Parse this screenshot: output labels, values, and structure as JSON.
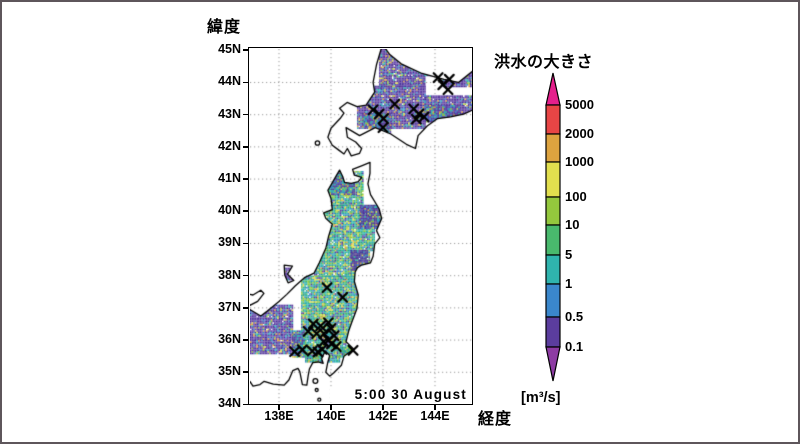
{
  "figure": {
    "border_color": "#5e565b",
    "background": "#ffffff"
  },
  "map": {
    "ylabel": "緯度",
    "xlabel": "経度",
    "timestamp": "5:00 30 August",
    "lat_ticks": [
      {
        "label": "45N",
        "lat": 45
      },
      {
        "label": "44N",
        "lat": 44
      },
      {
        "label": "43N",
        "lat": 43
      },
      {
        "label": "42N",
        "lat": 42
      },
      {
        "label": "41N",
        "lat": 41
      },
      {
        "label": "40N",
        "lat": 40
      },
      {
        "label": "39N",
        "lat": 39
      },
      {
        "label": "38N",
        "lat": 38
      },
      {
        "label": "37N",
        "lat": 37
      },
      {
        "label": "36N",
        "lat": 36
      },
      {
        "label": "35N",
        "lat": 35
      },
      {
        "label": "34N",
        "lat": 34
      }
    ],
    "lon_ticks": [
      {
        "label": "138E",
        "lon": 138
      },
      {
        "label": "140E",
        "lon": 140
      },
      {
        "label": "142E",
        "lon": 142
      },
      {
        "label": "144E",
        "lon": 144
      }
    ],
    "grid_lats": [
      35,
      36,
      37,
      38,
      39,
      40,
      41,
      42,
      43,
      44
    ],
    "grid_lons": [
      138,
      140,
      142,
      144
    ],
    "grid_color": "#9b9b9b",
    "coast_color": "#000000",
    "marker_color": "#000000",
    "palettes": {
      "purple": [
        [
          "#5b3d9e",
          42
        ],
        [
          "#6b4bb0",
          18
        ],
        [
          "#49309a",
          14
        ],
        [
          "#30b5b0",
          7
        ],
        [
          "#3a87cc",
          6
        ],
        [
          "#dda33f",
          5
        ],
        [
          "#94c83d",
          3
        ],
        [
          "#e2df4e",
          3
        ],
        [
          "#ffffff",
          2
        ]
      ],
      "teal": [
        [
          "#2fb4ae",
          28
        ],
        [
          "#2a9e8e",
          11
        ],
        [
          "#49b96d",
          13
        ],
        [
          "#94c83d",
          13
        ],
        [
          "#e2df4e",
          9
        ],
        [
          "#3a87cc",
          10
        ],
        [
          "#5b3d9e",
          10
        ],
        [
          "#dda33f",
          4
        ],
        [
          "#ffffff",
          2
        ]
      ],
      "mixed": [
        [
          "#5b3d9e",
          33
        ],
        [
          "#2fb4ae",
          22
        ],
        [
          "#3a87cc",
          12
        ],
        [
          "#6b4bb0",
          12
        ],
        [
          "#94c83d",
          9
        ],
        [
          "#dda33f",
          5
        ],
        [
          "#e2df4e",
          4
        ],
        [
          "#ffffff",
          3
        ]
      ]
    },
    "regions": [
      [
        "teal",
        [
          139.9,
          40.2,
          141.2,
          41.25
        ]
      ],
      [
        "teal",
        [
          139.6,
          38.8,
          141.65,
          40.2
        ]
      ],
      [
        "teal",
        [
          141.65,
          39.5,
          141.95,
          40.2
        ]
      ],
      [
        "teal",
        [
          139.35,
          38.0,
          141.5,
          38.8
        ]
      ],
      [
        "teal",
        [
          138.85,
          36.2,
          141.05,
          38.0
        ]
      ],
      [
        "teal",
        [
          138.5,
          35.5,
          141.0,
          36.2
        ]
      ],
      [
        "teal",
        [
          139.0,
          35.35,
          140.35,
          35.5
        ]
      ],
      [
        "teal",
        [
          140.35,
          35.55,
          141.05,
          35.78
        ]
      ],
      [
        "purple",
        [
          141.85,
          44.2,
          145.46,
          45.04
        ]
      ],
      [
        "purple",
        [
          141.85,
          43.9,
          143.6,
          44.2
        ]
      ],
      [
        "purple",
        [
          144.3,
          43.9,
          145.46,
          44.2
        ]
      ],
      [
        "purple",
        [
          141.0,
          42.6,
          143.6,
          43.9
        ]
      ],
      [
        "purple",
        [
          143.6,
          42.8,
          145.46,
          43.6
        ]
      ],
      [
        "mixed",
        [
          141.2,
          42.62,
          142.3,
          43.05
        ]
      ],
      [
        "mixed",
        [
          143.6,
          42.85,
          144.9,
          43.3
        ]
      ],
      [
        "mixed",
        [
          141.7,
          42.4,
          142.3,
          42.7
        ]
      ],
      [
        "mixed",
        [
          140.0,
          40.55,
          140.9,
          41.25
        ]
      ],
      [
        "purple",
        [
          141.1,
          39.5,
          141.85,
          40.2
        ]
      ],
      [
        "purple",
        [
          140.75,
          38.2,
          141.4,
          38.8
        ]
      ],
      [
        "purple",
        [
          136.885,
          35.6,
          138.5,
          37.1
        ]
      ],
      [
        "mixed",
        [
          138.5,
          35.55,
          138.95,
          36.3
        ]
      ],
      [
        "purple",
        [
          138.2,
          37.9,
          138.55,
          38.25
        ]
      ]
    ],
    "coastlines": {
      "honshu": [
        [
          136.88,
          36.95
        ],
        [
          137.3,
          36.75
        ],
        [
          137.55,
          36.9
        ],
        [
          138.0,
          37.2
        ],
        [
          138.3,
          37.42
        ],
        [
          138.62,
          37.68
        ],
        [
          139.0,
          37.95
        ],
        [
          139.35,
          38.08
        ],
        [
          139.55,
          38.4
        ],
        [
          139.8,
          38.85
        ],
        [
          139.9,
          39.2
        ],
        [
          140.05,
          39.6
        ],
        [
          139.8,
          39.78
        ],
        [
          139.72,
          39.95
        ],
        [
          140.05,
          40.05
        ],
        [
          140.0,
          40.4
        ],
        [
          139.88,
          40.65
        ],
        [
          140.2,
          41.1
        ],
        [
          140.33,
          41.28
        ],
        [
          140.45,
          41.08
        ],
        [
          140.52,
          40.9
        ],
        [
          140.78,
          40.87
        ],
        [
          141.05,
          40.92
        ],
        [
          141.18,
          41.05
        ],
        [
          140.9,
          41.12
        ],
        [
          140.83,
          41.3
        ],
        [
          141.2,
          41.42
        ],
        [
          141.5,
          41.52
        ],
        [
          141.5,
          41.18
        ],
        [
          141.42,
          40.85
        ],
        [
          141.52,
          40.52
        ],
        [
          141.85,
          40.08
        ],
        [
          141.95,
          39.78
        ],
        [
          141.75,
          39.4
        ],
        [
          141.88,
          39.18
        ],
        [
          141.68,
          38.98
        ],
        [
          141.62,
          38.6
        ],
        [
          141.52,
          38.4
        ],
        [
          141.18,
          38.33
        ],
        [
          141.02,
          38.25
        ],
        [
          140.93,
          38.12
        ],
        [
          140.9,
          37.82
        ],
        [
          141.05,
          37.4
        ],
        [
          141.0,
          36.98
        ],
        [
          140.8,
          36.55
        ],
        [
          140.68,
          36.28
        ],
        [
          140.58,
          35.95
        ],
        [
          140.88,
          35.72
        ],
        [
          140.5,
          35.5
        ],
        [
          140.4,
          35.22
        ],
        [
          140.1,
          34.98
        ],
        [
          139.95,
          34.88
        ],
        [
          139.8,
          35.0
        ],
        [
          139.88,
          35.32
        ],
        [
          139.95,
          35.52
        ],
        [
          139.78,
          35.66
        ],
        [
          139.64,
          35.42
        ],
        [
          139.7,
          35.28
        ],
        [
          139.5,
          35.32
        ],
        [
          139.3,
          35.3
        ],
        [
          139.17,
          35.1
        ],
        [
          139.12,
          34.88
        ],
        [
          139.07,
          34.6
        ],
        [
          138.9,
          34.62
        ],
        [
          138.8,
          35.02
        ],
        [
          138.73,
          35.12
        ],
        [
          138.53,
          35.05
        ],
        [
          138.38,
          34.76
        ],
        [
          138.2,
          34.6
        ],
        [
          137.78,
          34.63
        ],
        [
          137.43,
          34.72
        ],
        [
          137.27,
          34.62
        ],
        [
          137.0,
          34.57
        ],
        [
          136.88,
          34.72
        ],
        [
          136.4,
          34.72
        ],
        [
          136.4,
          36.95
        ]
      ],
      "noto": [
        [
          136.88,
          37.08
        ],
        [
          137.18,
          37.2
        ],
        [
          137.42,
          37.45
        ],
        [
          137.3,
          37.55
        ],
        [
          137.0,
          37.4
        ],
        [
          136.88,
          37.42
        ],
        [
          136.6,
          37.25
        ]
      ],
      "hokkaido": [
        [
          141.95,
          45.1
        ],
        [
          141.75,
          44.55
        ],
        [
          141.62,
          44.0
        ],
        [
          141.68,
          43.7
        ],
        [
          141.35,
          43.3
        ],
        [
          141.0,
          43.25
        ],
        [
          140.62,
          43.38
        ],
        [
          140.33,
          43.2
        ],
        [
          140.5,
          43.05
        ],
        [
          140.35,
          42.88
        ],
        [
          140.0,
          42.58
        ],
        [
          139.88,
          42.3
        ],
        [
          140.05,
          42.05
        ],
        [
          140.3,
          41.9
        ],
        [
          140.5,
          41.78
        ],
        [
          140.63,
          41.95
        ],
        [
          140.78,
          41.72
        ],
        [
          141.1,
          41.8
        ],
        [
          141.18,
          41.95
        ],
        [
          140.95,
          42.15
        ],
        [
          140.63,
          42.3
        ],
        [
          140.58,
          42.6
        ],
        [
          141.1,
          42.35
        ],
        [
          141.7,
          42.6
        ],
        [
          142.3,
          42.4
        ],
        [
          142.9,
          42.08
        ],
        [
          143.25,
          41.95
        ],
        [
          143.35,
          42.35
        ],
        [
          143.7,
          42.65
        ],
        [
          144.1,
          42.88
        ],
        [
          144.6,
          42.93
        ],
        [
          145.1,
          43.02
        ],
        [
          145.6,
          43.2
        ],
        [
          145.6,
          44.45
        ],
        [
          144.9,
          44.0
        ],
        [
          144.35,
          44.1
        ],
        [
          143.5,
          44.28
        ],
        [
          142.7,
          44.58
        ],
        [
          142.25,
          44.88
        ],
        [
          142.05,
          45.1
        ]
      ],
      "sado": [
        [
          138.2,
          38.33
        ],
        [
          138.52,
          38.3
        ],
        [
          138.33,
          38.05
        ],
        [
          138.57,
          37.85
        ],
        [
          138.35,
          37.78
        ],
        [
          138.22,
          38.02
        ]
      ]
    },
    "island_dots": [
      [
        139.48,
        42.12,
        2.2
      ],
      [
        139.4,
        34.73,
        2.4
      ],
      [
        139.45,
        34.45,
        1.5
      ],
      [
        139.55,
        34.15,
        1.5
      ]
    ]
  },
  "colorbar": {
    "title": "洪水の大きさ",
    "unit": "[m³/s]",
    "tick_labels": [
      "5000",
      "2000",
      "1000",
      "100",
      "10",
      "5",
      "1",
      "0.5",
      "0.1"
    ],
    "segment_colors": [
      "#e84545",
      "#dda33f",
      "#e2df4e",
      "#94c83d",
      "#49b96d",
      "#2fb4ae",
      "#3a87cc",
      "#5b3d9e"
    ],
    "arrow_top_color": "#e51f8c",
    "arrow_bottom_color": "#8d3ba3",
    "outline_color": "#000000"
  },
  "chart_data": {
    "type": "heatmap",
    "title": "洪水の大きさ",
    "unit": "[m³/s]",
    "time_label": "5:00 30 August",
    "colorbar_levels": [
      0.1,
      0.5,
      1,
      5,
      10,
      100,
      1000,
      2000,
      5000
    ],
    "lon_range": [
      136.9,
      145.5
    ],
    "lat_range": [
      34,
      45
    ],
    "flood_markers_lonlat": [
      [
        141.62,
        43.15
      ],
      [
        141.85,
        43.02
      ],
      [
        142.02,
        42.88
      ],
      [
        142.45,
        43.33
      ],
      [
        143.18,
        43.18
      ],
      [
        143.38,
        43.02
      ],
      [
        143.58,
        42.93
      ],
      [
        143.28,
        42.86
      ],
      [
        142.0,
        42.6
      ],
      [
        144.12,
        44.15
      ],
      [
        144.55,
        44.1
      ],
      [
        144.3,
        43.93
      ],
      [
        144.5,
        43.78
      ],
      [
        139.85,
        37.63
      ],
      [
        140.45,
        37.33
      ],
      [
        139.32,
        36.5
      ],
      [
        139.6,
        36.44
      ],
      [
        139.9,
        36.54
      ],
      [
        139.12,
        36.27
      ],
      [
        139.45,
        36.2
      ],
      [
        139.73,
        36.2
      ],
      [
        140.0,
        36.36
      ],
      [
        140.12,
        36.14
      ],
      [
        139.9,
        36.0
      ],
      [
        139.72,
        35.95
      ],
      [
        140.02,
        35.88
      ],
      [
        140.2,
        35.8
      ],
      [
        138.6,
        35.64
      ],
      [
        138.9,
        35.7
      ],
      [
        139.28,
        35.66
      ],
      [
        139.5,
        35.63
      ],
      [
        139.66,
        35.71
      ],
      [
        140.85,
        35.68
      ]
    ]
  }
}
